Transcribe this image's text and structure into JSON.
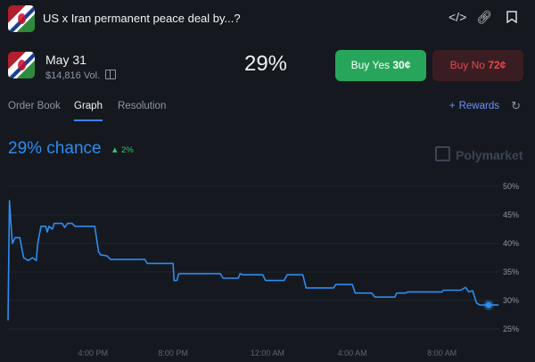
{
  "header": {
    "title": "US x Iran permanent peace deal by...?",
    "icons": [
      "code-icon",
      "link-icon",
      "bookmark-icon"
    ]
  },
  "market": {
    "date": "May 31",
    "volume": "$14,816 Vol.",
    "probability": "29%",
    "buy_yes_label": "Buy Yes",
    "buy_yes_price": "30¢",
    "buy_no_label": "Buy No",
    "buy_no_price": "72¢"
  },
  "tabs": [
    {
      "label": "Order Book",
      "active": false
    },
    {
      "label": "Graph",
      "active": true
    },
    {
      "label": "Resolution",
      "active": false
    }
  ],
  "rewards_label": "Rewards",
  "chance_text": "29% chance",
  "change_text": "2%",
  "watermark": "Polymarket",
  "chart_data": {
    "type": "line",
    "y_ticks": [
      "50%",
      "45%",
      "40%",
      "35%",
      "30%",
      "25%"
    ],
    "x_ticks": [
      "4:00 PM",
      "8:00 PM",
      "12:00 AM",
      "4:00 AM",
      "8:00 AM"
    ],
    "ylim": [
      25,
      50
    ],
    "xlim": [
      0,
      100
    ],
    "series": [
      {
        "color": "#2d8cf0",
        "points": [
          [
            0,
            26.5
          ],
          [
            0.3,
            47.5
          ],
          [
            0.9,
            40
          ],
          [
            1.5,
            41
          ],
          [
            2.5,
            41
          ],
          [
            3.3,
            37.5
          ],
          [
            4.3,
            37
          ],
          [
            5.2,
            37.5
          ],
          [
            6,
            37
          ],
          [
            6.3,
            40
          ],
          [
            7,
            43
          ],
          [
            8,
            43
          ],
          [
            8.3,
            42
          ],
          [
            8.7,
            43
          ],
          [
            9.4,
            42.5
          ],
          [
            9.8,
            43.5
          ],
          [
            11.5,
            43.5
          ],
          [
            12,
            42.8
          ],
          [
            12.6,
            43.5
          ],
          [
            13.6,
            43.5
          ],
          [
            14.2,
            43
          ],
          [
            18.4,
            43
          ],
          [
            19.2,
            38.5
          ],
          [
            19.6,
            38
          ],
          [
            21,
            37.8
          ],
          [
            21.7,
            37.2
          ],
          [
            29,
            37.2
          ],
          [
            29.5,
            36.5
          ],
          [
            35,
            36.5
          ],
          [
            35.2,
            33.5
          ],
          [
            35.8,
            33.5
          ],
          [
            36.2,
            34.7
          ],
          [
            45,
            34.7
          ],
          [
            45.6,
            33.9
          ],
          [
            48.8,
            33.9
          ],
          [
            49.2,
            34.7
          ],
          [
            49.7,
            34.5
          ],
          [
            54,
            34.5
          ],
          [
            54.6,
            33.5
          ],
          [
            58.5,
            33.5
          ],
          [
            59.2,
            34.5
          ],
          [
            62.5,
            34.5
          ],
          [
            63.2,
            32.2
          ],
          [
            69,
            32.2
          ],
          [
            69.5,
            32.8
          ],
          [
            73,
            32.8
          ],
          [
            73.6,
            31.3
          ],
          [
            77.1,
            31.3
          ],
          [
            77.8,
            30.6
          ],
          [
            82,
            30.6
          ],
          [
            82.4,
            31.3
          ],
          [
            84.3,
            31.3
          ],
          [
            84.7,
            31.5
          ],
          [
            92,
            31.5
          ],
          [
            92.3,
            31.8
          ],
          [
            96,
            31.8
          ],
          [
            97,
            32.3
          ],
          [
            97.7,
            31.5
          ],
          [
            98.5,
            31.7
          ],
          [
            99.3,
            29.6
          ],
          [
            100,
            29.2
          ],
          [
            104,
            29.2
          ]
        ]
      }
    ]
  }
}
